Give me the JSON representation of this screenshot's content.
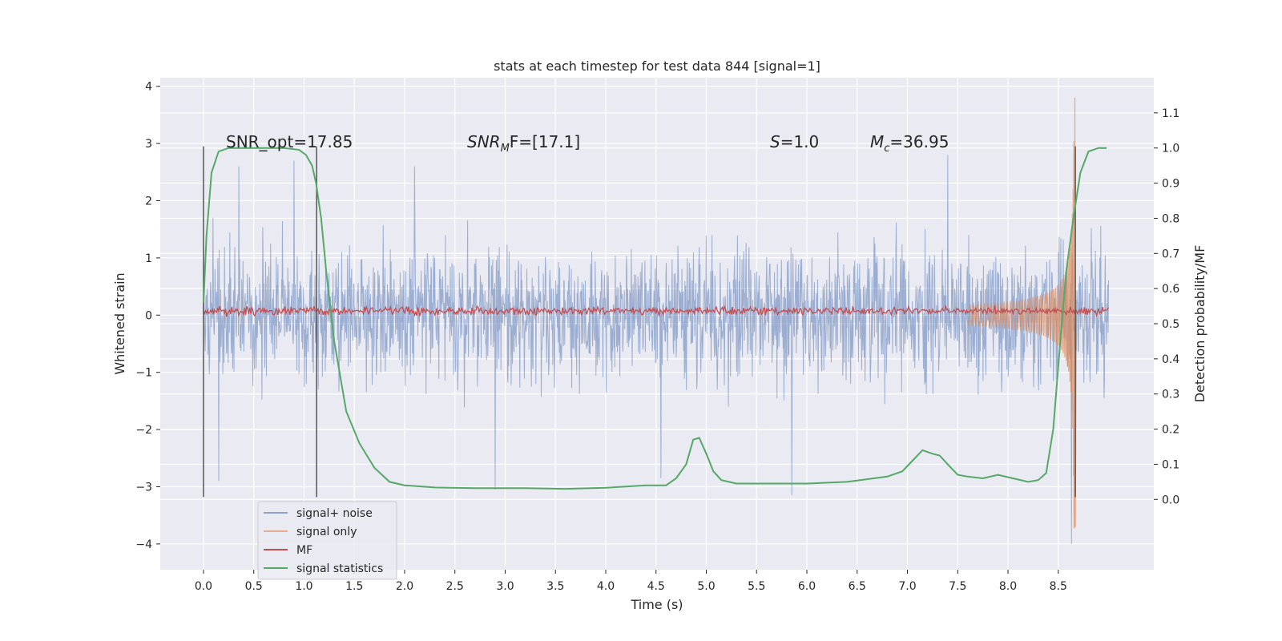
{
  "chart_data": {
    "type": "line",
    "title": "stats at each timestep for test data 844 [signal=1]",
    "xlabel": "Time (s)",
    "ylabel": "Whitened strain",
    "ylabel_right": "Detection probability/MF",
    "xlim": [
      -0.43,
      9.45
    ],
    "ylim": [
      -4.45,
      4.15
    ],
    "ylim_right": [
      -0.2,
      1.2
    ],
    "x_ticks": [
      0.0,
      0.5,
      1.0,
      1.5,
      2.0,
      2.5,
      3.0,
      3.5,
      4.0,
      4.5,
      5.0,
      5.5,
      6.0,
      6.5,
      7.0,
      7.5,
      8.0,
      8.5
    ],
    "x_tick_labels": [
      "0.0",
      "0.5",
      "1.0",
      "1.5",
      "2.0",
      "2.5",
      "3.0",
      "3.5",
      "4.0",
      "4.5",
      "5.0",
      "5.5",
      "6.0",
      "6.5",
      "7.0",
      "7.5",
      "8.0",
      "8.5"
    ],
    "y_ticks": [
      -4,
      -3,
      -2,
      -1,
      0,
      1,
      2,
      3,
      4
    ],
    "y_tick_labels": [
      "−4",
      "−3",
      "−2",
      "−1",
      "0",
      "1",
      "2",
      "3",
      "4"
    ],
    "y_right_ticks": [
      0.0,
      0.1,
      0.2,
      0.3,
      0.4,
      0.5,
      0.6,
      0.7,
      0.8,
      0.9,
      1.0,
      1.1
    ],
    "y_right_tick_labels": [
      "0.0",
      "0.1",
      "0.2",
      "0.3",
      "0.4",
      "0.5",
      "0.6",
      "0.7",
      "0.8",
      "0.9",
      "1.0",
      "1.1"
    ],
    "grid": true,
    "legend_position": "lower-left",
    "legend": [
      "signal+ noise",
      "signal only",
      "MF",
      "signal statistics"
    ],
    "annotations": {
      "snr_opt": "SNR_opt=17.85",
      "snr_mf_base": "SNR",
      "snr_mf_sub": "M",
      "snr_mf_rest": "F=[17.1]",
      "s_var": "S",
      "s_val": "=1.0",
      "mc_var": "M",
      "mc_sub": "c",
      "mc_val": "=36.95"
    },
    "vertical_markers": [
      {
        "x": 0.0,
        "y_range": [
          -3.18,
          2.95
        ]
      },
      {
        "x": 1.125,
        "y_range": [
          -3.18,
          2.95
        ]
      },
      {
        "x": 8.67,
        "y_range": [
          -3.18,
          2.95
        ]
      }
    ],
    "noise_series": {
      "name": "signal+ noise",
      "x_range": [
        0.0,
        9.0
      ],
      "amplitude_sigma": 0.95,
      "peak_values": [
        {
          "x": 0.15,
          "y": -2.9
        },
        {
          "x": 0.35,
          "y": 2.6
        },
        {
          "x": 0.9,
          "y": 2.7
        },
        {
          "x": 2.1,
          "y": 2.6
        },
        {
          "x": 2.9,
          "y": -3.05
        },
        {
          "x": 4.55,
          "y": -2.85
        },
        {
          "x": 5.85,
          "y": -3.15
        },
        {
          "x": 7.4,
          "y": 2.8
        },
        {
          "x": 8.63,
          "y": -4.0
        }
      ]
    },
    "signal_only": {
      "name": "signal only",
      "chirp_end": 8.66,
      "peak_amplitude": 3.8,
      "trough_amplitude": -3.7
    },
    "mf_series": {
      "name": "MF",
      "x_range": [
        0.0,
        9.0
      ],
      "baseline": 0.07,
      "spread": 0.06
    },
    "signal_statistics": {
      "name": "signal statistics",
      "axis": "right",
      "x": [
        0.0,
        0.03,
        0.08,
        0.15,
        0.25,
        0.4,
        0.6,
        0.8,
        0.95,
        1.02,
        1.08,
        1.12,
        1.17,
        1.22,
        1.3,
        1.42,
        1.55,
        1.7,
        1.85,
        2.0,
        2.3,
        2.7,
        3.2,
        3.6,
        4.0,
        4.4,
        4.6,
        4.7,
        4.8,
        4.87,
        4.93,
        5.0,
        5.07,
        5.15,
        5.3,
        5.6,
        6.0,
        6.4,
        6.8,
        6.95,
        7.05,
        7.15,
        7.25,
        7.32,
        7.4,
        7.5,
        7.6,
        7.75,
        7.9,
        8.05,
        8.2,
        8.3,
        8.38,
        8.45,
        8.52,
        8.58,
        8.65,
        8.72,
        8.8,
        8.9,
        8.98
      ],
      "y": [
        0.56,
        0.75,
        0.93,
        0.99,
        1.0,
        1.0,
        1.0,
        1.0,
        0.995,
        0.98,
        0.95,
        0.9,
        0.8,
        0.65,
        0.45,
        0.25,
        0.16,
        0.09,
        0.05,
        0.04,
        0.034,
        0.032,
        0.032,
        0.03,
        0.033,
        0.04,
        0.04,
        0.06,
        0.1,
        0.17,
        0.175,
        0.13,
        0.08,
        0.055,
        0.045,
        0.045,
        0.045,
        0.05,
        0.065,
        0.08,
        0.11,
        0.14,
        0.13,
        0.125,
        0.1,
        0.07,
        0.065,
        0.06,
        0.07,
        0.06,
        0.05,
        0.055,
        0.075,
        0.2,
        0.45,
        0.65,
        0.8,
        0.93,
        0.99,
        1.0,
        1.0
      ]
    },
    "colors": {
      "background": "#eaeaf2",
      "grid": "#ffffff",
      "noise": "#4c72b0",
      "signal_only": "#dd8452",
      "mf": "#c44e52",
      "stats": "#55a868",
      "marker": "#555555",
      "text": "#262626"
    }
  }
}
